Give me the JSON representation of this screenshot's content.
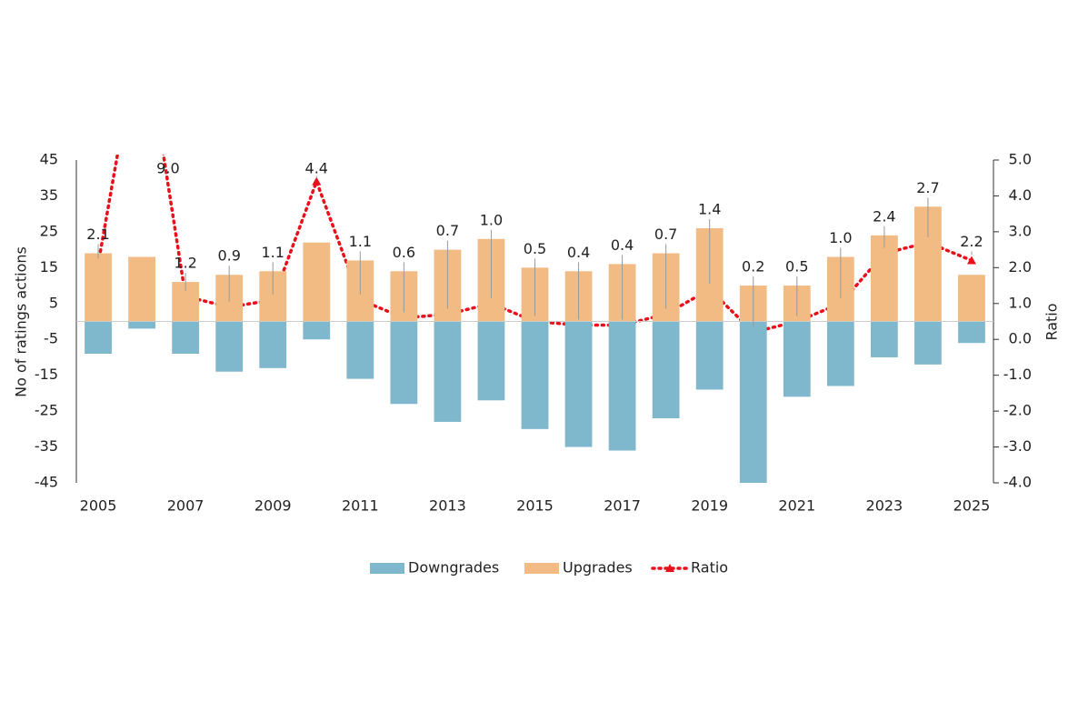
{
  "chart_data": {
    "type": "bar-line",
    "y_label": "No of ratings actions",
    "y2_label": "Ratio",
    "categories": [
      "2005",
      null,
      "2007",
      null,
      "2009",
      null,
      "2011",
      null,
      "2013",
      null,
      "2015",
      null,
      "2017",
      null,
      "2019",
      null,
      "2021",
      null,
      "2023",
      null,
      "2025"
    ],
    "series": [
      {
        "name": "Downgrades",
        "type": "bar",
        "color": "#7fb8cc",
        "values": [
          -9,
          -2,
          -9,
          -14,
          -13,
          -5,
          -16,
          -23,
          -28,
          -22,
          -30,
          -35,
          -36,
          -27,
          -19,
          -45,
          -21,
          -18,
          -10,
          -12,
          -6
        ]
      },
      {
        "name": "Upgrades",
        "type": "bar",
        "color": "#f3bb84",
        "values": [
          19,
          18,
          11,
          13,
          14,
          22,
          17,
          14,
          20,
          23,
          15,
          14,
          16,
          19,
          26,
          10,
          10,
          18,
          24,
          32,
          13
        ]
      },
      {
        "name": "Ratio",
        "type": "line",
        "axis": "y2",
        "color": "#e8101a",
        "values": [
          2.1,
          9.0,
          1.2,
          0.9,
          1.1,
          4.4,
          1.1,
          0.6,
          0.7,
          1.0,
          0.5,
          0.4,
          0.4,
          0.7,
          1.4,
          0.2,
          0.5,
          1.0,
          2.4,
          2.7,
          2.2
        ],
        "value_labels": [
          "2.1",
          "9.0",
          "1.2",
          "0.9",
          "1.1",
          "4.4",
          "1.1",
          "0.6",
          "0.7",
          "1.0",
          "0.5",
          "0.4",
          "0.4",
          "0.7",
          "1.4",
          "0.2",
          "0.5",
          "1.0",
          "2.4",
          "2.7",
          "2.2"
        ]
      }
    ],
    "ylim": [
      -45,
      45
    ],
    "yticks": [
      -45,
      -35,
      -25,
      -15,
      -5,
      5,
      15,
      25,
      35,
      45
    ],
    "y2lim": [
      -4,
      5
    ],
    "y2ticks": [
      {
        "value": -4,
        "label": "-4.0"
      },
      {
        "value": -3,
        "label": "-3.0"
      },
      {
        "value": -2,
        "label": "-2.0"
      },
      {
        "value": -1,
        "label": "-1.0"
      },
      {
        "value": 0,
        "label": "0.0"
      },
      {
        "value": 1,
        "label": "1.0"
      },
      {
        "value": 2,
        "label": "2.0"
      },
      {
        "value": 3,
        "label": "3.0"
      },
      {
        "value": 4,
        "label": "4.0"
      },
      {
        "value": 5,
        "label": "5.0"
      }
    ],
    "legend": "bottom"
  }
}
